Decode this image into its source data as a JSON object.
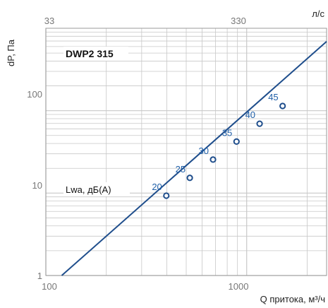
{
  "chart_data": {
    "type": "line",
    "title": "DWP2 315",
    "annotation": "Lwa, дБ(А)",
    "xlabel": "Q притока, м³/ч",
    "x2label": "л/с",
    "ylabel": "dP, Па",
    "xscale": "log",
    "yscale": "log",
    "xlim": [
      100,
      2500
    ],
    "ylim": [
      1,
      1000
    ],
    "x_ticks": [
      "100",
      "1000"
    ],
    "x2_ticks": [
      "33",
      "330"
    ],
    "y_ticks": [
      "1",
      "10",
      "100"
    ],
    "grid": true,
    "series": [
      {
        "x": [
          120,
          2500
        ],
        "y": [
          1.0,
          690
        ],
        "color": "#1f4e8c"
      }
    ],
    "points": [
      {
        "label": "20",
        "x": 398,
        "y": 9.3
      },
      {
        "label": "25",
        "x": 521,
        "y": 15.3
      },
      {
        "label": "30",
        "x": 680,
        "y": 25.5
      },
      {
        "label": "35",
        "x": 890,
        "y": 42.2
      },
      {
        "label": "40",
        "x": 1160,
        "y": 69.5
      },
      {
        "label": "45",
        "x": 1510,
        "y": 114
      }
    ],
    "colors": {
      "curve": "#1f4e8c",
      "point_label": "#1f5fa8",
      "grid": "#c8c8c8",
      "frame": "#999999"
    }
  }
}
